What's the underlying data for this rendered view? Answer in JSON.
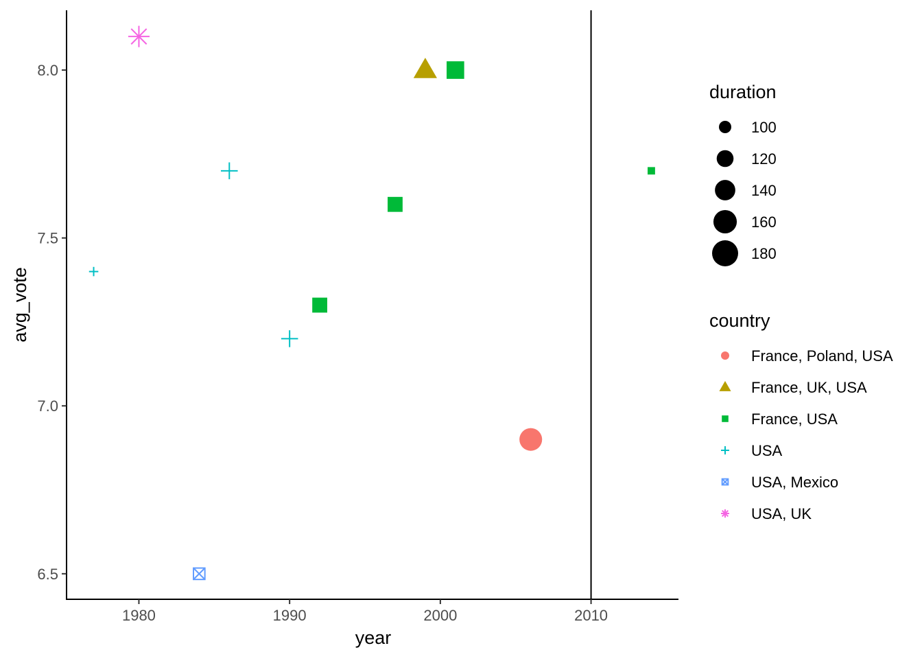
{
  "chart_data": {
    "type": "scatter",
    "xlabel": "year",
    "ylabel": "avg_vote",
    "xlim": [
      1975.2,
      2015.8
    ],
    "ylim": [
      6.424,
      8.178
    ],
    "xticks": [
      1980,
      1990,
      2000,
      2010
    ],
    "xtick_labels": [
      "1980",
      "1990",
      "2000",
      "2010"
    ],
    "yticks": [
      6.5,
      7.0,
      7.5,
      8.0
    ],
    "ytick_labels": [
      "6.5",
      "7.0",
      "7.5",
      "8.0"
    ],
    "grid": false,
    "vline": 2010,
    "legend_position": "right",
    "size_legend": {
      "title": "duration",
      "values": [
        100,
        120,
        140,
        160,
        180
      ],
      "labels": [
        "100",
        "120",
        "140",
        "160",
        "180"
      ]
    },
    "color_legend": {
      "title": "country",
      "entries": [
        {
          "label": "France, Poland, USA",
          "color": "#F8766D",
          "shape": "circle"
        },
        {
          "label": "France, UK, USA",
          "color": "#B79F00",
          "shape": "triangle"
        },
        {
          "label": "France, USA",
          "color": "#00BA38",
          "shape": "square"
        },
        {
          "label": "USA",
          "color": "#00BFC4",
          "shape": "plus"
        },
        {
          "label": "USA, Mexico",
          "color": "#619CFF",
          "shape": "boxx"
        },
        {
          "label": "USA, UK",
          "color": "#F564E3",
          "shape": "asterisk"
        }
      ]
    },
    "points": [
      {
        "year": 1980,
        "avg_vote": 8.1,
        "duration": 146,
        "country": 5
      },
      {
        "year": 1999,
        "avg_vote": 8.0,
        "duration": 118,
        "country": 1
      },
      {
        "year": 2001,
        "avg_vote": 8.0,
        "duration": 150,
        "country": 2
      },
      {
        "year": 1986,
        "avg_vote": 7.7,
        "duration": 120,
        "country": 3
      },
      {
        "year": 2014,
        "avg_vote": 7.7,
        "duration": 90,
        "country": 2
      },
      {
        "year": 1997,
        "avg_vote": 7.6,
        "duration": 130,
        "country": 2
      },
      {
        "year": 1977,
        "avg_vote": 7.4,
        "duration": 90,
        "country": 3
      },
      {
        "year": 1992,
        "avg_vote": 7.3,
        "duration": 130,
        "country": 2
      },
      {
        "year": 1990,
        "avg_vote": 7.2,
        "duration": 120,
        "country": 3
      },
      {
        "year": 2006,
        "avg_vote": 6.9,
        "duration": 155,
        "country": 0
      },
      {
        "year": 1984,
        "avg_vote": 6.5,
        "duration": 115,
        "country": 4
      }
    ]
  }
}
